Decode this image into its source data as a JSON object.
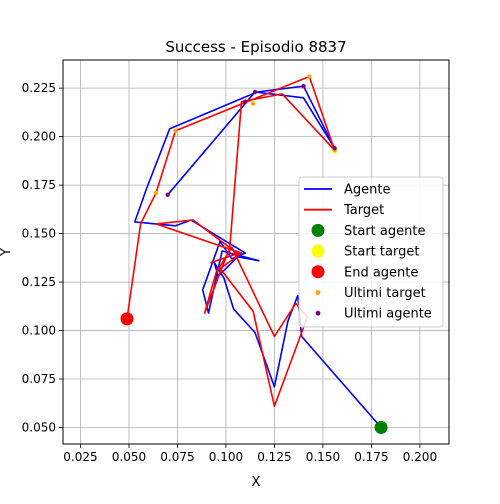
{
  "chart_data": {
    "type": "line",
    "title": "Success - Episodio 8837",
    "xlabel": "X",
    "ylabel": "Y",
    "xlim": [
      0.016,
      0.215
    ],
    "ylim": [
      0.0415,
      0.2395
    ],
    "xticks": [
      0.025,
      0.05,
      0.075,
      0.1,
      0.125,
      0.15,
      0.175,
      0.2
    ],
    "xtick_labels": [
      "0.025",
      "0.050",
      "0.075",
      "0.100",
      "0.125",
      "0.150",
      "0.175",
      "0.200"
    ],
    "yticks": [
      0.05,
      0.075,
      0.1,
      0.125,
      0.15,
      0.175,
      0.2,
      0.225
    ],
    "ytick_labels": [
      "0.050",
      "0.075",
      "0.100",
      "0.125",
      "0.150",
      "0.175",
      "0.200",
      "0.225"
    ],
    "grid": true,
    "legend_position": "center-right",
    "colors": {
      "agent": "#0000ff",
      "target": "#ff0000",
      "start_agent": "#008000",
      "start_target": "#ffff00",
      "end_agent": "#ff0000",
      "recent_target": "#ffa500",
      "recent_agent": "#800080",
      "grid": "#b0b0b0"
    },
    "series": [
      {
        "name": "Agente",
        "kind": "line",
        "x": [
          0.18,
          0.139,
          0.137,
          0.132,
          0.125,
          0.115,
          0.104,
          0.099,
          0.094,
          0.096,
          0.106,
          0.117,
          0.098,
          0.091,
          0.088,
          0.097,
          0.103,
          0.11,
          0.1,
          0.082,
          0.074,
          0.053,
          0.059,
          0.071,
          0.116,
          0.14,
          0.156,
          0.14,
          0.115,
          0.07
        ],
        "y": [
          0.05,
          0.097,
          0.118,
          0.105,
          0.071,
          0.099,
          0.111,
          0.127,
          0.135,
          0.128,
          0.138,
          0.136,
          0.141,
          0.109,
          0.121,
          0.146,
          0.137,
          0.14,
          0.146,
          0.157,
          0.154,
          0.156,
          0.173,
          0.204,
          0.223,
          0.226,
          0.194,
          0.22,
          0.223,
          0.17
        ]
      },
      {
        "name": "Target",
        "kind": "line",
        "x": [
          0.049,
          0.056,
          0.064,
          0.074,
          0.143,
          0.156,
          0.129,
          0.108,
          0.102,
          0.089,
          0.095,
          0.103,
          0.125,
          0.136,
          0.142,
          0.125,
          0.114,
          0.097,
          0.107,
          0.083,
          0.064,
          0.093,
          0.108,
          0.104,
          0.092
        ],
        "y": [
          0.106,
          0.155,
          0.171,
          0.203,
          0.231,
          0.193,
          0.222,
          0.218,
          0.143,
          0.109,
          0.13,
          0.143,
          0.097,
          0.114,
          0.107,
          0.061,
          0.11,
          0.132,
          0.139,
          0.157,
          0.155,
          0.145,
          0.14,
          0.139,
          0.135
        ]
      },
      {
        "name": "Start agente",
        "kind": "point",
        "x": [
          0.18
        ],
        "y": [
          0.05
        ]
      },
      {
        "name": "Start target",
        "kind": "point",
        "x": [
          0.156
        ],
        "y": [
          0.193
        ]
      },
      {
        "name": "End agente",
        "kind": "point",
        "x": [
          0.049
        ],
        "y": [
          0.106
        ]
      },
      {
        "name": "Ultimi target",
        "kind": "point",
        "x": [
          0.156,
          0.143,
          0.114,
          0.074,
          0.064
        ],
        "y": [
          0.193,
          0.231,
          0.217,
          0.203,
          0.171
        ]
      },
      {
        "name": "Ultimi agente",
        "kind": "point",
        "x": [
          0.07,
          0.11,
          0.115,
          0.14,
          0.156
        ],
        "y": [
          0.17,
          0.218,
          0.223,
          0.226,
          0.194
        ]
      }
    ],
    "legend": [
      "Agente",
      "Target",
      "Start agente",
      "Start target",
      "End agente",
      "Ultimi target",
      "Ultimi agente"
    ]
  }
}
